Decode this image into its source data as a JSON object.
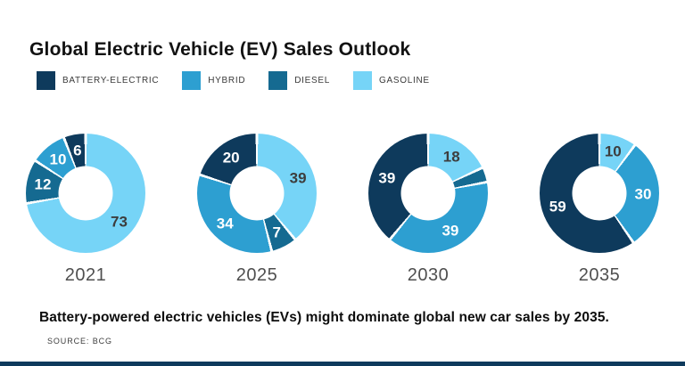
{
  "title": "Global Electric Vehicle (EV) Sales Outlook",
  "legend": [
    {
      "key": "battery-electric",
      "label": "BATTERY-ELECTRIC",
      "color": "#0E3A5C"
    },
    {
      "key": "hybrid",
      "label": "HYBRID",
      "color": "#2D9FD1"
    },
    {
      "key": "diesel",
      "label": "DIESEL",
      "color": "#156A91"
    },
    {
      "key": "gasoline",
      "label": "GASOLINE",
      "color": "#76D4F7"
    }
  ],
  "caption": "Battery-powered electric vehicles (EVs) might dominate global new car sales by 2035.",
  "source": "SOURCE:  BCG",
  "footer_bar_color": "#0E3A5C",
  "label_colors": {
    "on_light": "#3d3d3d",
    "on_dark": "#ffffff"
  },
  "chart_data": {
    "type": "pie",
    "subtype": "donut",
    "title": "Global Electric Vehicle (EV) Sales Outlook",
    "unit": "percent share of global new car sales",
    "legend_position": "top",
    "clockwise_from_top_order": [
      "gasoline",
      "diesel",
      "hybrid",
      "battery-electric"
    ],
    "charts": [
      {
        "year": "2021",
        "segments": [
          {
            "key": "gasoline",
            "value": 73,
            "label": "73"
          },
          {
            "key": "diesel",
            "value": 12,
            "label": "12"
          },
          {
            "key": "hybrid",
            "value": 10,
            "label": "10"
          },
          {
            "key": "battery-electric",
            "value": 6,
            "label": "6"
          }
        ]
      },
      {
        "year": "2025",
        "segments": [
          {
            "key": "gasoline",
            "value": 39,
            "label": "39"
          },
          {
            "key": "diesel",
            "value": 7,
            "label": "7"
          },
          {
            "key": "hybrid",
            "value": 34,
            "label": "34"
          },
          {
            "key": "battery-electric",
            "value": 20,
            "label": "20"
          }
        ]
      },
      {
        "year": "2030",
        "segments": [
          {
            "key": "gasoline",
            "value": 18,
            "label": "18"
          },
          {
            "key": "diesel",
            "value": 4,
            "label": ""
          },
          {
            "key": "hybrid",
            "value": 39,
            "label": "39"
          },
          {
            "key": "battery-electric",
            "value": 39,
            "label": "39"
          }
        ]
      },
      {
        "year": "2035",
        "segments": [
          {
            "key": "gasoline",
            "value": 10,
            "label": "10"
          },
          {
            "key": "diesel",
            "value": 0,
            "label": ""
          },
          {
            "key": "hybrid",
            "value": 30,
            "label": "30"
          },
          {
            "key": "battery-electric",
            "value": 59,
            "label": "59"
          }
        ]
      }
    ]
  }
}
